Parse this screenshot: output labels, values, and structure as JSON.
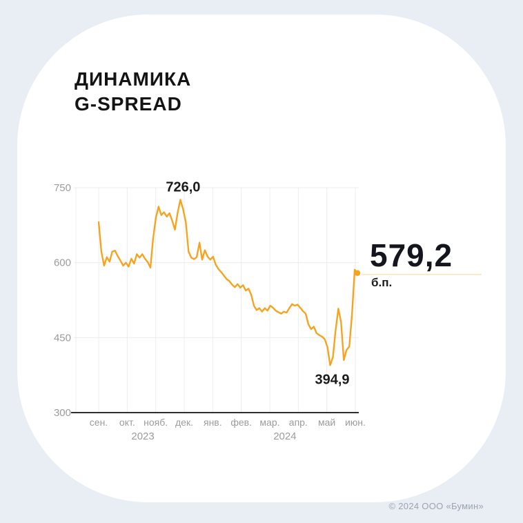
{
  "header": {
    "title_line1": "ДИНАМИКА",
    "title_line2": "G-SPREAD"
  },
  "callout": {
    "value": "579,2",
    "unit": "б.п."
  },
  "footer": {
    "copyright": "© 2024 ООО «Бумин»"
  },
  "colors": {
    "background": "#E9EDF4",
    "card": "#FFFFFF",
    "line": "#F6A41F",
    "grid": "#ECECEC",
    "axis": "#2F2F2F",
    "tick_text": "#9B9B9B",
    "annotation_text": "#1B1B1B",
    "value_text": "#15151D",
    "footer_text": "#9AA3B0"
  },
  "chart_data": {
    "type": "line",
    "title": "Динамика G-spread",
    "xlabel": "",
    "ylabel": "б.п.",
    "ylim": [
      300,
      750
    ],
    "yticks": [
      750,
      600,
      450,
      300
    ],
    "grid": true,
    "legend": false,
    "x_month_labels": [
      "сен.",
      "окт.",
      "нояб.",
      "дек.",
      "янв.",
      "фев.",
      "мар.",
      "апр.",
      "май",
      "июн."
    ],
    "year_labels": [
      {
        "label": "2023",
        "month_axis_position": 1.55
      },
      {
        "label": "2024",
        "month_axis_position": 6.53
      }
    ],
    "series": [
      {
        "name": "G-spread",
        "start": "2023-09-01",
        "step_days": 3,
        "values": [
          681,
          622,
          594,
          611,
          602,
          622,
          624,
          613,
          604,
          594,
          600,
          592,
          608,
          598,
          617,
          610,
          617,
          608,
          601,
          590,
          648,
          690,
          712,
          695,
          701,
          692,
          699,
          684,
          666,
          700,
          726,
          707,
          681,
          622,
          610,
          607,
          611,
          640,
          606,
          625,
          612,
          606,
          612,
          596,
          587,
          581,
          574,
          567,
          563,
          556,
          551,
          557,
          550,
          555,
          544,
          548,
          536,
          514,
          505,
          509,
          502,
          509,
          504,
          514,
          510,
          504,
          501,
          498,
          502,
          500,
          509,
          517,
          514,
          516,
          510,
          503,
          498,
          477,
          467,
          472,
          459,
          455,
          452,
          447,
          431,
          394.9,
          411,
          465,
          508,
          481,
          405,
          425,
          432,
          495,
          586,
          579.2
        ]
      }
    ],
    "annotations": {
      "max": {
        "value": 726.0,
        "label": "726,0"
      },
      "min": {
        "value": 394.9,
        "label": "394,9"
      },
      "last": {
        "value": 579.2,
        "label": "579,2",
        "unit": "б.п."
      }
    }
  }
}
